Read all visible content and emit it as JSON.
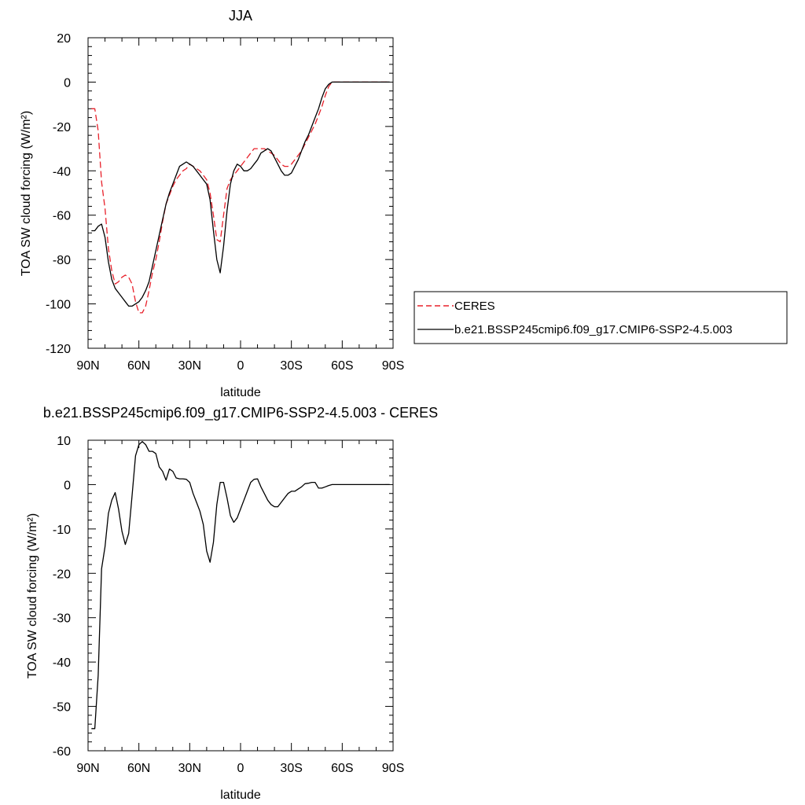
{
  "chart_data": [
    {
      "type": "line",
      "title": "JJA",
      "xlabel": "latitude",
      "ylabel": "TOA SW cloud forcing (W/m²)",
      "xlim": [
        90,
        -90
      ],
      "ylim": [
        -120,
        20
      ],
      "xticks": [
        90,
        60,
        30,
        0,
        -30,
        -60,
        -90
      ],
      "xtick_labels": [
        "90N",
        "60N",
        "30N",
        "0",
        "30S",
        "60S",
        "90S"
      ],
      "yticks": [
        20,
        0,
        -20,
        -40,
        -60,
        -80,
        -100,
        -120
      ],
      "ytick_labels": [
        "20",
        "0",
        "-20",
        "-40",
        "-60",
        "-80",
        "-100",
        "-120"
      ],
      "legend": {
        "placement": "right"
      },
      "series": [
        {
          "name": "CERES",
          "color": "#e8202a",
          "dash": "dashed",
          "x": [
            88,
            86,
            84,
            82,
            80,
            78,
            76,
            74,
            72,
            70,
            68,
            66,
            64,
            62,
            60,
            58,
            56,
            54,
            52,
            50,
            48,
            46,
            44,
            42,
            40,
            38,
            36,
            34,
            32,
            30,
            28,
            26,
            24,
            22,
            20,
            18,
            16,
            14,
            12,
            10,
            8,
            6,
            4,
            2,
            0,
            -2,
            -4,
            -6,
            -8,
            -10,
            -12,
            -14,
            -16,
            -18,
            -20,
            -22,
            -24,
            -26,
            -28,
            -30,
            -32,
            -34,
            -36,
            -38,
            -40,
            -42,
            -44,
            -46,
            -48,
            -50,
            -52,
            -54,
            -56,
            -58,
            -60,
            -62,
            -64,
            -66,
            -68,
            -70,
            -72,
            -74,
            -76,
            -78,
            -80,
            -82,
            -84,
            -86,
            -88
          ],
          "y": [
            -12,
            -12,
            -22,
            -45,
            -57,
            -75,
            -85,
            -91,
            -90,
            -88,
            -87,
            -88,
            -91,
            -99,
            -104,
            -104,
            -101,
            -94,
            -86,
            -80,
            -72,
            -63,
            -55,
            -51,
            -47,
            -44,
            -42,
            -40,
            -39,
            -37,
            -38,
            -39,
            -40,
            -42,
            -44,
            -50,
            -60,
            -71,
            -72,
            -60,
            -48,
            -44,
            -42,
            -40,
            -38,
            -36,
            -34,
            -32,
            -30,
            -30,
            -30,
            -30,
            -31,
            -32,
            -33,
            -35,
            -37,
            -38,
            -38,
            -37,
            -35,
            -33,
            -31,
            -28,
            -25,
            -22,
            -19,
            -15,
            -11,
            -6,
            -2,
            0,
            0,
            0,
            0,
            0,
            0,
            0,
            0,
            0,
            0,
            0,
            0,
            0,
            0,
            0,
            0,
            0,
            0
          ]
        },
        {
          "name": "b.e21.BSSP245cmip6.f09_g17.CMIP6-SSP2-4.5.003",
          "color": "#000000",
          "dash": "solid",
          "x": [
            88,
            86,
            84,
            82,
            80,
            78,
            76,
            74,
            72,
            70,
            68,
            66,
            64,
            62,
            60,
            58,
            56,
            54,
            52,
            50,
            48,
            46,
            44,
            42,
            40,
            38,
            36,
            34,
            32,
            30,
            28,
            26,
            24,
            22,
            20,
            18,
            16,
            14,
            12,
            10,
            8,
            6,
            4,
            2,
            0,
            -2,
            -4,
            -6,
            -8,
            -10,
            -12,
            -14,
            -16,
            -18,
            -20,
            -22,
            -24,
            -26,
            -28,
            -30,
            -32,
            -34,
            -36,
            -38,
            -40,
            -42,
            -44,
            -46,
            -48,
            -50,
            -52,
            -54,
            -56,
            -58,
            -60,
            -62,
            -64,
            -66,
            -68,
            -70,
            -72,
            -74,
            -76,
            -78,
            -80,
            -82,
            -84,
            -86,
            -88
          ],
          "y": [
            -67,
            -67,
            -65,
            -64,
            -70,
            -81,
            -89,
            -93,
            -95,
            -97,
            -99,
            -101,
            -101,
            -100,
            -99,
            -97,
            -94,
            -90,
            -83,
            -76,
            -69,
            -62,
            -55,
            -50,
            -46,
            -42,
            -38,
            -37,
            -36,
            -37,
            -38,
            -40,
            -42,
            -44,
            -46,
            -53,
            -67,
            -80,
            -86,
            -74,
            -58,
            -46,
            -40,
            -37,
            -38,
            -40,
            -40,
            -39,
            -37,
            -35,
            -32,
            -31,
            -30,
            -31,
            -34,
            -37,
            -40,
            -42,
            -42,
            -41,
            -38,
            -35,
            -31,
            -27,
            -24,
            -20,
            -16,
            -12,
            -7,
            -3,
            -1,
            0,
            0,
            0,
            0,
            0,
            0,
            0,
            0,
            0,
            0,
            0,
            0,
            0,
            0,
            0,
            0,
            0,
            0
          ]
        }
      ]
    },
    {
      "type": "line",
      "title": "b.e21.BSSP245cmip6.f09_g17.CMIP6-SSP2-4.5.003 - CERES",
      "xlabel": "latitude",
      "ylabel": "TOA SW cloud forcing (W/m²)",
      "xlim": [
        90,
        -90
      ],
      "ylim": [
        -60,
        10
      ],
      "xticks": [
        90,
        60,
        30,
        0,
        -30,
        -60,
        -90
      ],
      "xtick_labels": [
        "90N",
        "60N",
        "30N",
        "0",
        "30S",
        "60S",
        "90S"
      ],
      "yticks": [
        10,
        0,
        -10,
        -20,
        -30,
        -40,
        -50,
        -60
      ],
      "ytick_labels": [
        "10",
        "0",
        "-10",
        "-20",
        "-30",
        "-40",
        "-50",
        "-60"
      ],
      "series": [
        {
          "color": "#000000",
          "dash": "solid",
          "x": [
            88,
            86,
            84,
            82,
            80,
            78,
            76,
            74,
            72,
            70,
            68,
            66,
            64,
            62,
            60,
            58,
            56,
            54,
            52,
            50,
            48,
            46,
            44,
            42,
            40,
            38,
            36,
            34,
            32,
            30,
            28,
            26,
            24,
            22,
            20,
            18,
            16,
            14,
            12,
            10,
            8,
            6,
            4,
            2,
            0,
            -2,
            -4,
            -6,
            -8,
            -10,
            -12,
            -14,
            -16,
            -18,
            -20,
            -22,
            -24,
            -26,
            -28,
            -30,
            -32,
            -34,
            -36,
            -38,
            -40,
            -42,
            -44,
            -46,
            -48,
            -50,
            -52,
            -54,
            -56,
            -58,
            -60,
            -62,
            -64,
            -66,
            -68,
            -70,
            -72,
            -74,
            -76,
            -78,
            -80,
            -82,
            -84,
            -86,
            -88
          ],
          "y": [
            -55,
            -55,
            -43,
            -19,
            -14,
            -6.5,
            -3.5,
            -1.8,
            -5.5,
            -10.5,
            -13.5,
            -11,
            -2.5,
            6.5,
            9,
            9.7,
            9,
            7.5,
            7.5,
            7,
            4,
            3,
            1,
            3.5,
            3,
            1.5,
            1.3,
            1.3,
            1.2,
            0.5,
            -2,
            -4,
            -6,
            -9,
            -15,
            -17.5,
            -13,
            -4.5,
            0.5,
            0.5,
            -3,
            -7,
            -8.5,
            -7.5,
            -5.5,
            -3.5,
            -1.5,
            0.5,
            1.2,
            1.3,
            -0.5,
            -2,
            -3.5,
            -4.5,
            -5,
            -5,
            -4,
            -3,
            -2,
            -1.5,
            -1.5,
            -1,
            -0.5,
            0.2,
            0.3,
            0.5,
            0.5,
            -0.8,
            -0.8,
            -0.5,
            -0.2,
            0,
            0,
            0,
            0,
            0,
            0,
            0,
            0,
            0,
            0,
            0,
            0,
            0,
            0,
            0,
            0,
            0,
            0
          ]
        }
      ]
    }
  ]
}
